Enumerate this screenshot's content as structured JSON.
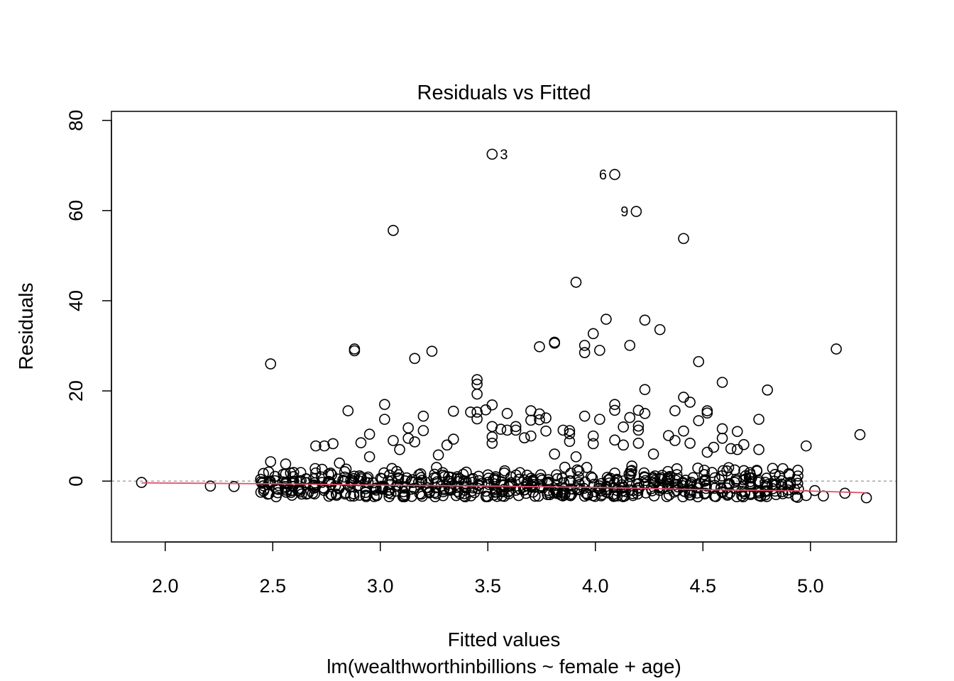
{
  "chart_data": {
    "type": "scatter",
    "title": "Residuals vs Fitted",
    "xlabel": "Fitted values",
    "sublabel": "lm(wealthworthinbillions ~ female + age)",
    "ylabel": "Residuals",
    "xlim": [
      1.75,
      5.4
    ],
    "ylim": [
      -13.5,
      82.0
    ],
    "xticks": [
      2.0,
      2.5,
      3.0,
      3.5,
      4.0,
      4.5,
      5.0
    ],
    "xtick_labels": [
      "2.0",
      "2.5",
      "3.0",
      "3.5",
      "4.0",
      "4.5",
      "5.0"
    ],
    "yticks": [
      0,
      20,
      40,
      60,
      80
    ],
    "ytick_labels": [
      "0",
      "20",
      "40",
      "60",
      "80"
    ],
    "zero_line": 0,
    "labeled_points": [
      {
        "label": "3",
        "x": 3.52,
        "y": 72.5
      },
      {
        "label": "6",
        "x": 4.09,
        "y": 68.0
      },
      {
        "label": "9",
        "x": 4.19,
        "y": 59.8
      }
    ],
    "outliers": [
      [
        1.89,
        -0.3
      ],
      [
        2.21,
        -1.1
      ],
      [
        2.32,
        -1.2
      ],
      [
        2.49,
        26.0
      ],
      [
        2.49,
        4.3
      ],
      [
        2.56,
        3.8
      ],
      [
        2.56,
        1.6
      ],
      [
        2.63,
        1.9
      ],
      [
        2.7,
        7.8
      ],
      [
        2.7,
        1.8
      ],
      [
        2.74,
        7.8
      ],
      [
        2.78,
        8.3
      ],
      [
        2.81,
        4.0
      ],
      [
        2.85,
        15.6
      ],
      [
        2.88,
        29.3
      ],
      [
        2.88,
        28.9
      ],
      [
        2.91,
        8.5
      ],
      [
        2.95,
        10.4
      ],
      [
        2.95,
        5.4
      ],
      [
        3.02,
        17.0
      ],
      [
        3.02,
        13.7
      ],
      [
        3.06,
        55.6
      ],
      [
        3.06,
        9.0
      ],
      [
        3.09,
        7.0
      ],
      [
        3.13,
        11.8
      ],
      [
        3.13,
        9.5
      ],
      [
        3.16,
        27.2
      ],
      [
        3.16,
        8.7
      ],
      [
        3.2,
        14.4
      ],
      [
        3.2,
        11.2
      ],
      [
        3.24,
        28.8
      ],
      [
        3.27,
        5.8
      ],
      [
        3.31,
        8.0
      ],
      [
        3.34,
        15.5
      ],
      [
        3.34,
        9.3
      ],
      [
        3.42,
        15.3
      ],
      [
        3.45,
        22.5
      ],
      [
        3.45,
        21.5
      ],
      [
        3.45,
        19.3
      ],
      [
        3.45,
        15.3
      ],
      [
        3.45,
        13.8
      ],
      [
        3.49,
        15.8
      ],
      [
        3.52,
        16.9
      ],
      [
        3.52,
        12.1
      ],
      [
        3.52,
        9.8
      ],
      [
        3.52,
        8.4
      ],
      [
        3.56,
        11.5
      ],
      [
        3.59,
        15.0
      ],
      [
        3.59,
        11.3
      ],
      [
        3.63,
        12.1
      ],
      [
        3.63,
        11.3
      ],
      [
        3.67,
        9.6
      ],
      [
        3.7,
        15.6
      ],
      [
        3.7,
        13.5
      ],
      [
        3.7,
        10.0
      ],
      [
        3.74,
        29.8
      ],
      [
        3.74,
        14.9
      ],
      [
        3.74,
        13.6
      ],
      [
        3.77,
        14.0
      ],
      [
        3.77,
        11.1
      ],
      [
        3.81,
        30.8
      ],
      [
        3.81,
        30.6
      ],
      [
        3.81,
        6.0
      ],
      [
        3.85,
        11.3
      ],
      [
        3.88,
        11.2
      ],
      [
        3.88,
        10.5
      ],
      [
        3.88,
        8.8
      ],
      [
        3.91,
        44.1
      ],
      [
        3.91,
        5.4
      ],
      [
        3.95,
        30.1
      ],
      [
        3.95,
        28.5
      ],
      [
        3.95,
        14.4
      ],
      [
        3.99,
        32.7
      ],
      [
        3.99,
        10.0
      ],
      [
        3.99,
        8.3
      ],
      [
        4.02,
        29.0
      ],
      [
        4.02,
        13.7
      ],
      [
        4.05,
        35.9
      ],
      [
        4.09,
        17.0
      ],
      [
        4.09,
        15.7
      ],
      [
        4.09,
        9.1
      ],
      [
        4.13,
        12.0
      ],
      [
        4.13,
        8.0
      ],
      [
        4.16,
        30.1
      ],
      [
        4.16,
        14.1
      ],
      [
        4.2,
        15.7
      ],
      [
        4.2,
        12.2
      ],
      [
        4.2,
        11.3
      ],
      [
        4.2,
        8.4
      ],
      [
        4.23,
        35.7
      ],
      [
        4.23,
        20.3
      ],
      [
        4.23,
        15.0
      ],
      [
        4.27,
        6.0
      ],
      [
        4.3,
        33.6
      ],
      [
        4.34,
        10.1
      ],
      [
        4.37,
        15.6
      ],
      [
        4.37,
        9.0
      ],
      [
        4.41,
        53.8
      ],
      [
        4.41,
        18.6
      ],
      [
        4.41,
        11.1
      ],
      [
        4.44,
        17.5
      ],
      [
        4.44,
        8.4
      ],
      [
        4.48,
        26.5
      ],
      [
        4.48,
        13.4
      ],
      [
        4.52,
        15.6
      ],
      [
        4.52,
        15.1
      ],
      [
        4.52,
        6.4
      ],
      [
        4.55,
        7.5
      ],
      [
        4.59,
        21.9
      ],
      [
        4.59,
        11.6
      ],
      [
        4.59,
        9.5
      ],
      [
        4.63,
        7.2
      ],
      [
        4.66,
        11.0
      ],
      [
        4.66,
        7.0
      ],
      [
        4.69,
        8.1
      ],
      [
        4.76,
        13.7
      ],
      [
        4.76,
        7.0
      ],
      [
        4.8,
        20.2
      ],
      [
        4.84,
        -3.0
      ],
      [
        4.94,
        -3.6
      ],
      [
        4.98,
        7.8
      ],
      [
        4.98,
        -3.2
      ],
      [
        5.02,
        -2.1
      ],
      [
        5.06,
        -3.3
      ],
      [
        5.12,
        29.3
      ],
      [
        5.16,
        -2.7
      ],
      [
        5.23,
        10.3
      ],
      [
        5.26,
        -3.7
      ]
    ],
    "dense_band": {
      "x_start": 2.45,
      "x_end": 4.95,
      "x_step": 0.035,
      "y_min": -3.5,
      "y_max": 3.5
    },
    "lowess_line": {
      "color": "#DF536B",
      "points": [
        [
          1.89,
          -0.4
        ],
        [
          2.5,
          -0.6
        ],
        [
          3.0,
          -0.9
        ],
        [
          3.5,
          -1.1
        ],
        [
          4.0,
          -1.4
        ],
        [
          4.5,
          -1.9
        ],
        [
          5.0,
          -2.2
        ],
        [
          5.26,
          -2.6
        ]
      ]
    },
    "dense_points_approx": true
  }
}
